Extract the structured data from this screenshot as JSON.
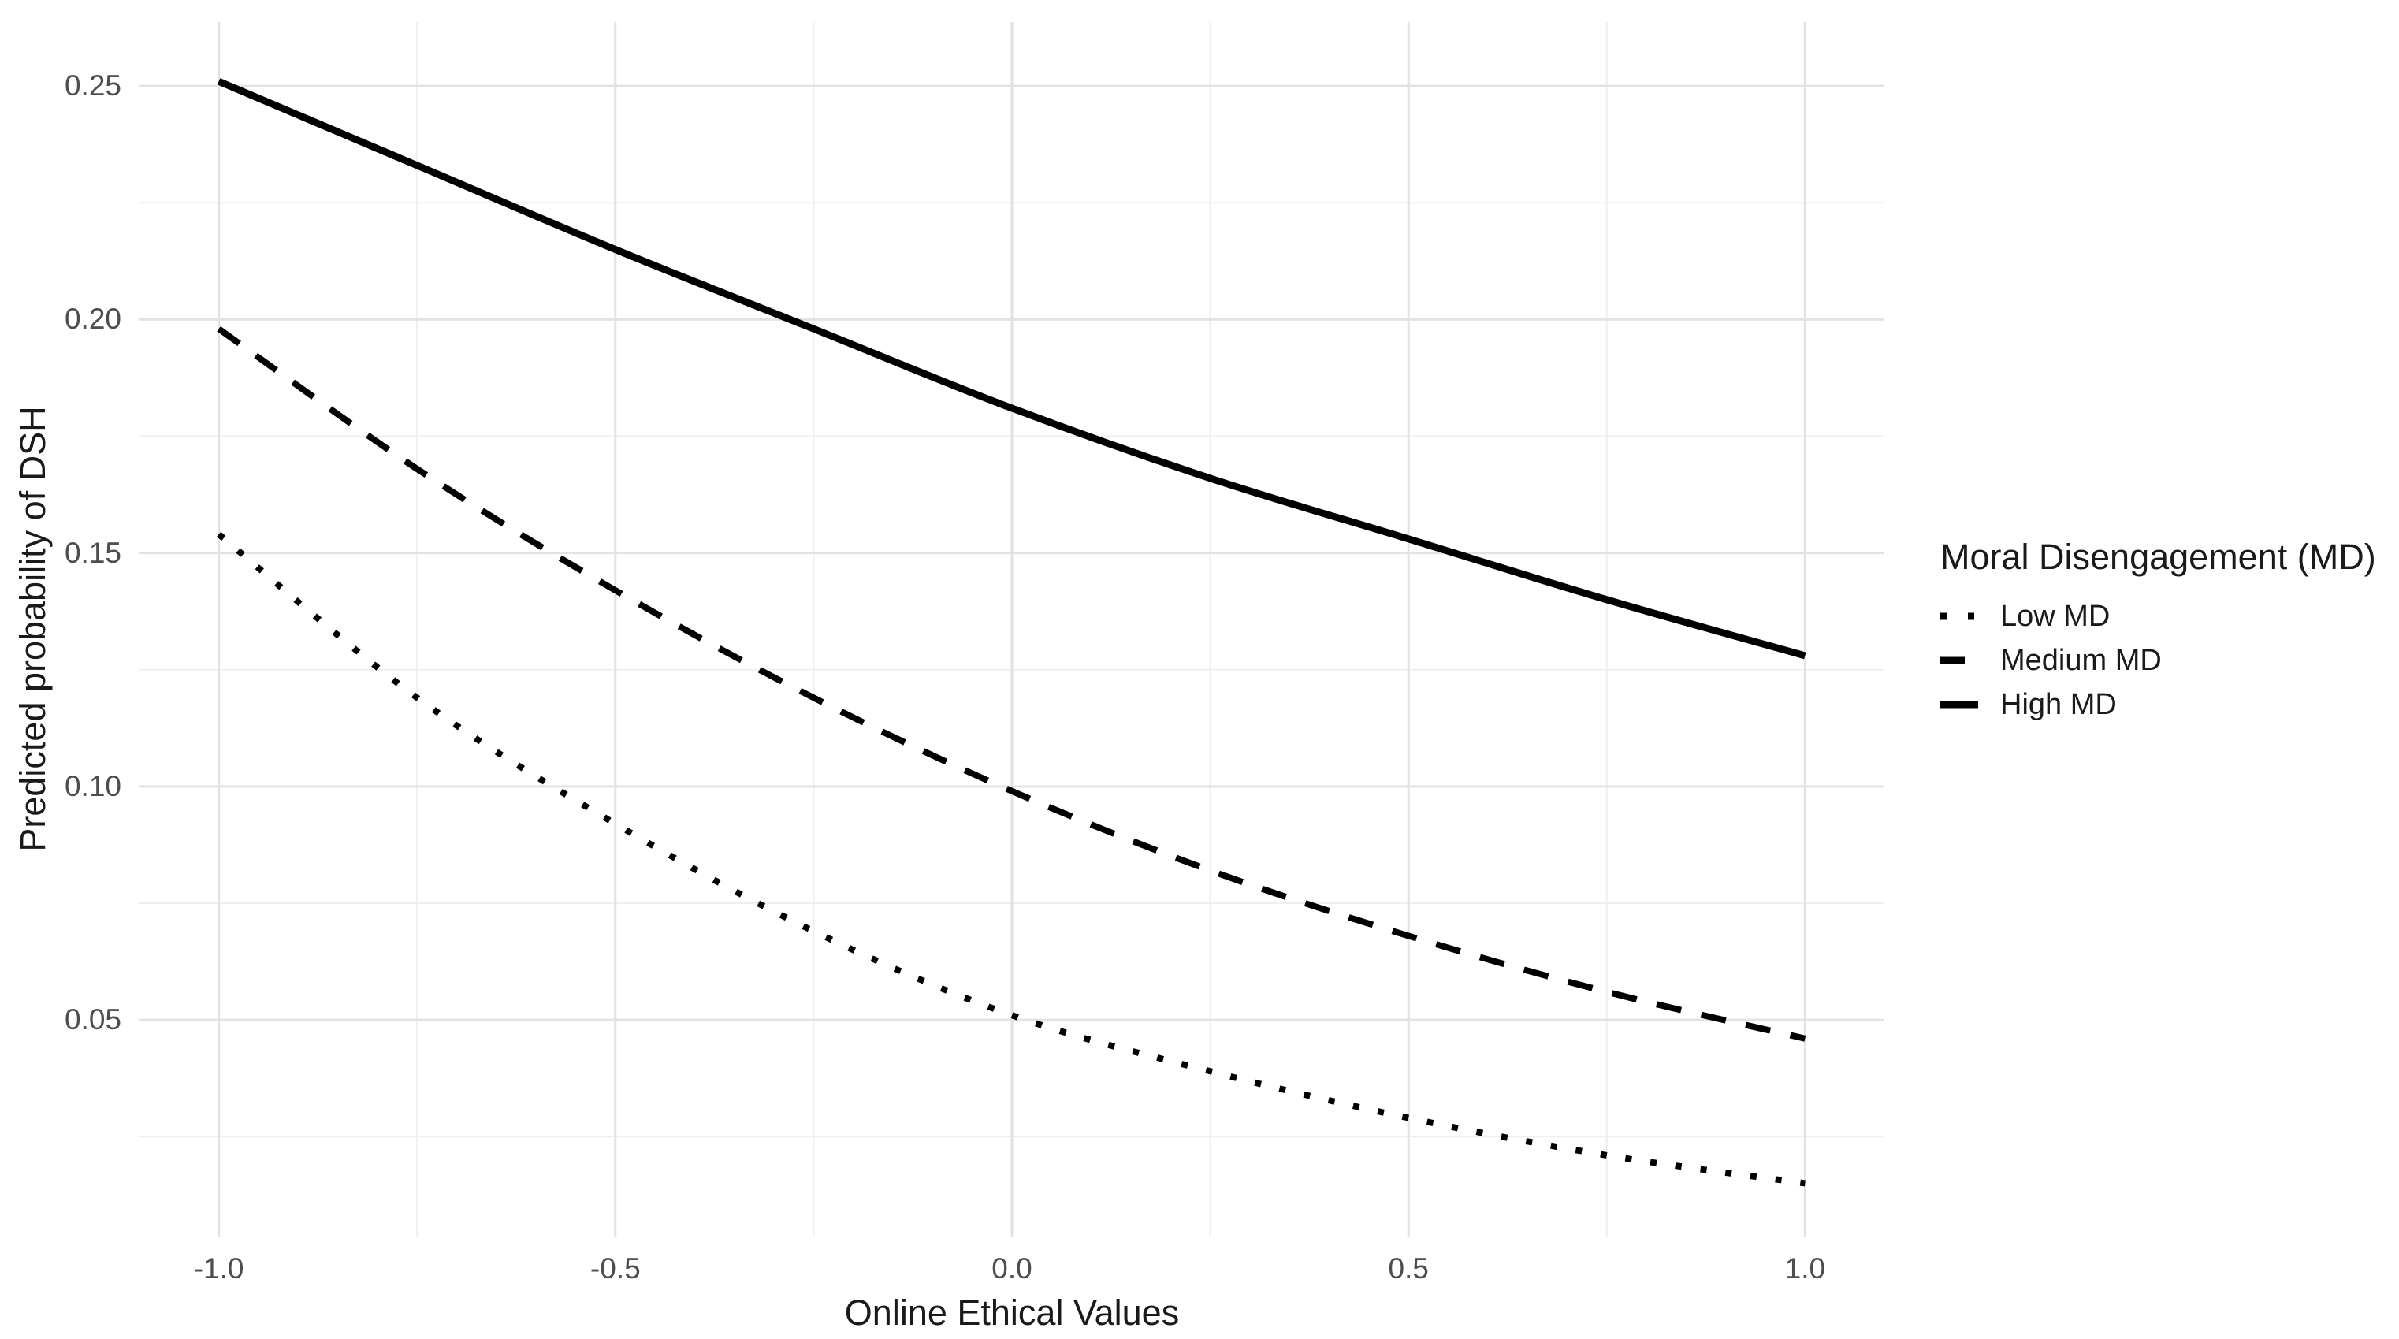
{
  "colors": {
    "series": "#000000",
    "grid_major": "#e2e2e2",
    "grid_minor": "#efefef",
    "tick_label": "#4d4d4d",
    "axis_title": "#1a1a1a",
    "background": "#ffffff"
  },
  "chart_data": {
    "type": "line",
    "title": "",
    "xlabel": "Online Ethical Values",
    "ylabel": "Predicted probability of DSH",
    "x": [
      -1.0,
      -0.75,
      -0.5,
      -0.25,
      0.0,
      0.25,
      0.5,
      0.75,
      1.0
    ],
    "series": [
      {
        "name": "Low MD",
        "linetype": "dotted",
        "values": [
          0.154,
          0.119,
          0.092,
          0.069,
          0.051,
          0.039,
          0.029,
          0.021,
          0.015
        ]
      },
      {
        "name": "Medium MD",
        "linetype": "dashed",
        "values": [
          0.198,
          0.168,
          0.142,
          0.119,
          0.099,
          0.082,
          0.068,
          0.056,
          0.046
        ]
      },
      {
        "name": "High MD",
        "linetype": "solid",
        "values": [
          0.251,
          0.233,
          0.215,
          0.198,
          0.181,
          0.166,
          0.153,
          0.14,
          0.128
        ]
      }
    ],
    "x_ticks": {
      "values": [
        -1.0,
        -0.5,
        0.0,
        0.5,
        1.0
      ],
      "labels": [
        "-1.0",
        "-0.5",
        "0.0",
        "0.5",
        "1.0"
      ]
    },
    "y_ticks": {
      "values": [
        0.05,
        0.1,
        0.15,
        0.2,
        0.25
      ],
      "labels": [
        "0.05",
        "0.10",
        "0.15",
        "0.20",
        "0.25"
      ]
    },
    "x_minor": [
      -0.75,
      -0.25,
      0.25,
      0.75
    ],
    "y_minor": [
      0.025,
      0.075,
      0.125,
      0.175,
      0.225
    ],
    "xlim": [
      -1.1,
      1.1
    ],
    "ylim": [
      0.0036,
      0.2637
    ],
    "grid": true,
    "legend": {
      "title": "Moral Disengagement (MD)",
      "position": "right"
    }
  }
}
